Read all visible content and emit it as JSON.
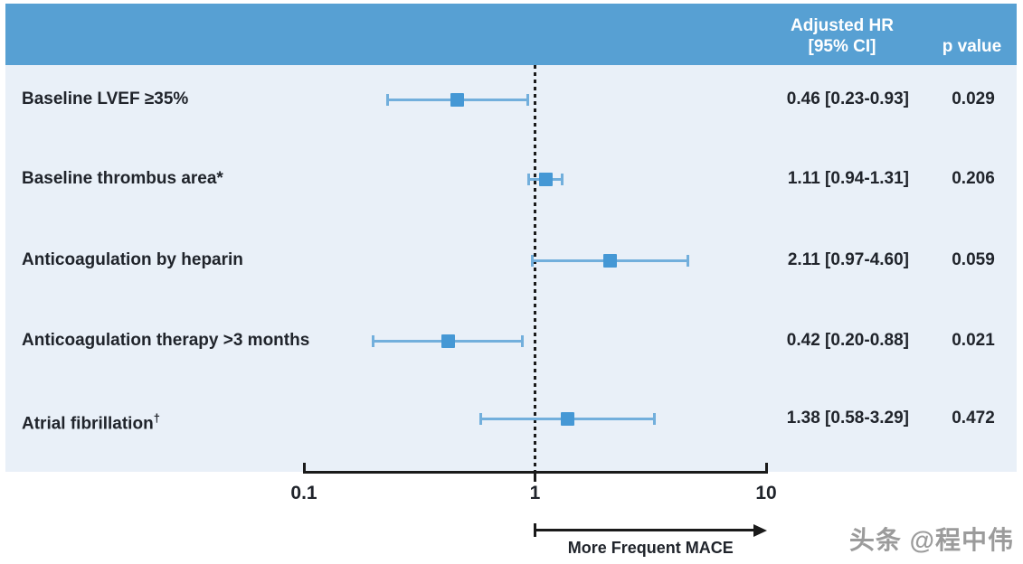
{
  "header": {
    "hr_label": "Adjusted HR",
    "ci_label": "[95% CI]",
    "p_label": "p value"
  },
  "chart_data": {
    "type": "forest",
    "x_scale": "log",
    "x_min": 0.1,
    "x_max": 10,
    "x_ticks": [
      0.1,
      1,
      10
    ],
    "x_tick_labels": [
      "0.1",
      "1",
      "10"
    ],
    "reference_line": 1.0,
    "arrow": {
      "from": 1,
      "to": 10,
      "label": "More Frequent MACE"
    },
    "rows": [
      {
        "label": "Baseline LVEF ≥35%",
        "hr": 0.46,
        "ci_low": 0.23,
        "ci_high": 0.93,
        "hr_ci_text": "0.46 [0.23-0.93]",
        "p_value": "0.029"
      },
      {
        "label": "Baseline thrombus area*",
        "hr": 1.11,
        "ci_low": 0.94,
        "ci_high": 1.31,
        "hr_ci_text": "1.11 [0.94-1.31]",
        "p_value": "0.206"
      },
      {
        "label": "Anticoagulation by heparin",
        "hr": 2.11,
        "ci_low": 0.97,
        "ci_high": 4.6,
        "hr_ci_text": "2.11 [0.97-4.60]",
        "p_value": "0.059"
      },
      {
        "label": "Anticoagulation therapy >3 months",
        "hr": 0.42,
        "ci_low": 0.2,
        "ci_high": 0.88,
        "hr_ci_text": "0.42 [0.20-0.88]",
        "p_value": "0.021"
      },
      {
        "label": "Atrial fibrillation",
        "label_sup": "†",
        "hr": 1.38,
        "ci_low": 0.58,
        "ci_high": 3.29,
        "hr_ci_text": "1.38 [0.58-3.29]",
        "p_value": "0.472"
      }
    ]
  },
  "watermark": "头条 @程中伟",
  "colors": {
    "header_bg": "#57a0d3",
    "plot_bg": "#e9f0f8",
    "ci_line": "#72afdc",
    "marker": "#4598d5",
    "text": "#20242b",
    "axis": "#1a1a1a",
    "watermark": "#9b9b9b"
  }
}
